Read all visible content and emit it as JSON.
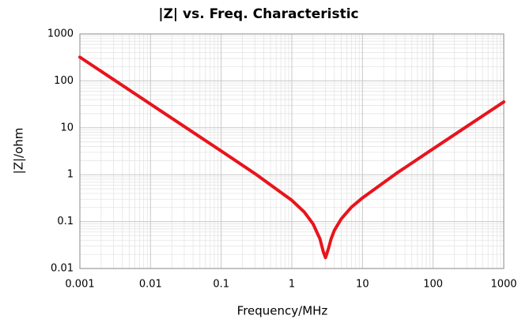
{
  "chart_data": {
    "type": "line",
    "title": "|Z| vs. Freq. Characteristic",
    "x_label": "Frequency/MHz",
    "y_label": "|Z|/ohm",
    "x": [
      0.001,
      0.01,
      0.1,
      0.3,
      1,
      1.5,
      2,
      2.5,
      2.8,
      3,
      3.3,
      3.6,
      4,
      5,
      7,
      10,
      30,
      100,
      300,
      1000
    ],
    "series": [
      {
        "name": "|Z|",
        "color": "#e8141c",
        "values": [
          320,
          32,
          3.2,
          1.056,
          0.284,
          0.16,
          0.089,
          0.043,
          0.0224,
          0.017,
          0.0266,
          0.043,
          0.065,
          0.114,
          0.204,
          0.32,
          1.06,
          3.56,
          10.7,
          35.6
        ]
      }
    ],
    "xlim": [
      0.001,
      1000
    ],
    "ylim": [
      0.01,
      1000
    ],
    "xticks": [
      0.001,
      0.01,
      0.1,
      1,
      10,
      100,
      1000
    ],
    "yticks": [
      0.01,
      0.1,
      1,
      10,
      100,
      1000
    ],
    "xscale": "log",
    "yscale": "log",
    "grid": true,
    "minor_grid": true
  }
}
